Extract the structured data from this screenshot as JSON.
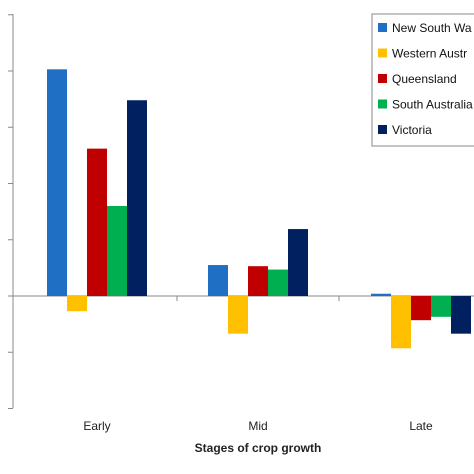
{
  "chart_data": {
    "type": "bar",
    "categories": [
      "Early",
      "Mid",
      "Late"
    ],
    "xlabel": "Stages of crop growth",
    "ylabel": "",
    "ylim": [
      -2,
      5.2
    ],
    "grid": false,
    "legend_position": "top-right",
    "series": [
      {
        "name": "New South Wa",
        "color": "#1f6fc4",
        "values": [
          4.03,
          0.55,
          0.04
        ]
      },
      {
        "name": "Western Austr",
        "color": "#ffc000",
        "values": [
          -0.27,
          -0.67,
          -0.93
        ]
      },
      {
        "name": "Queensland",
        "color": "#c00000",
        "values": [
          2.62,
          0.53,
          -0.43
        ]
      },
      {
        "name": "South Australia",
        "color": "#00b050",
        "values": [
          1.6,
          0.47,
          -0.37
        ]
      },
      {
        "name": "Victoria",
        "color": "#002060",
        "values": [
          3.48,
          1.19,
          -0.67
        ]
      }
    ]
  }
}
